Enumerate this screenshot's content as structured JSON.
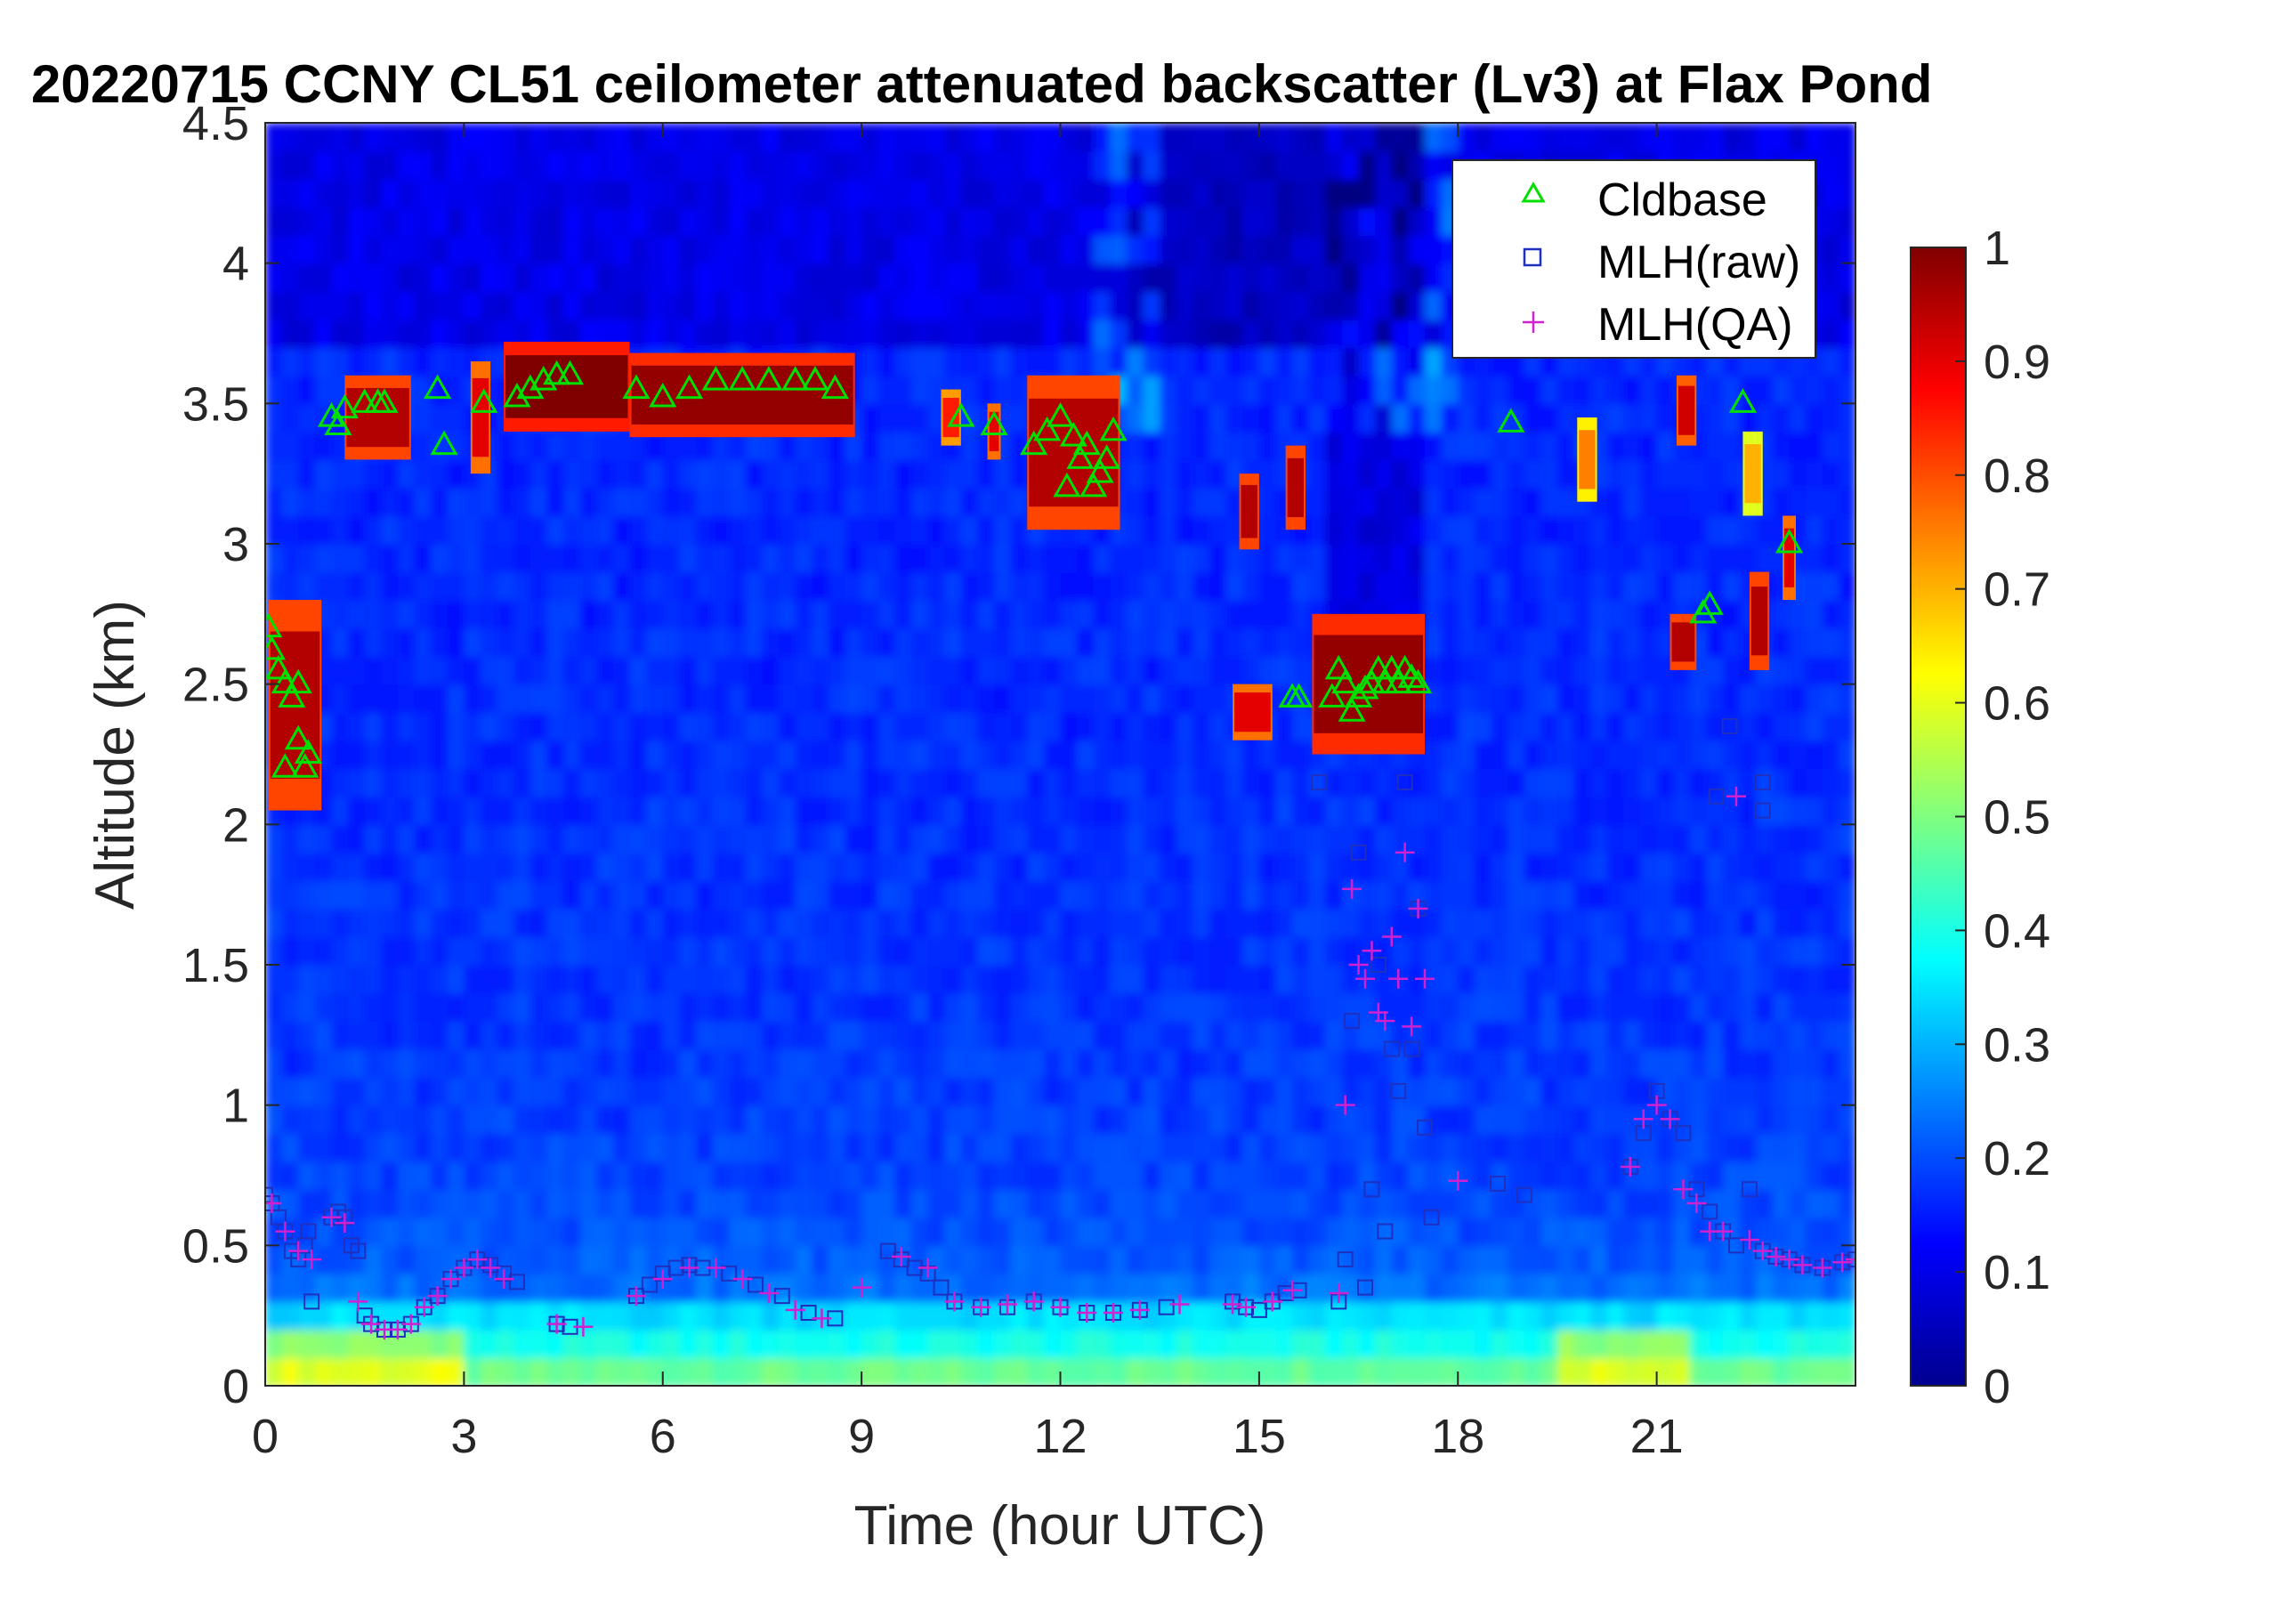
{
  "chart_data": {
    "type": "heatmap",
    "title": "20220715 CCNY CL51 ceilometer attenuated backscatter (Lv3) at Flax Pond",
    "xlabel": "Time (hour UTC)",
    "ylabel": "Altitude (km)",
    "xlim": [
      0,
      24
    ],
    "ylim": [
      0,
      4.5
    ],
    "xticks": [
      "0",
      "3",
      "6",
      "9",
      "12",
      "15",
      "18",
      "21"
    ],
    "xtick_values": [
      0,
      3,
      6,
      9,
      12,
      15,
      18,
      21
    ],
    "yticks": [
      "0",
      "0.5",
      "1",
      "1.5",
      "2",
      "2.5",
      "3",
      "3.5",
      "4",
      "4.5"
    ],
    "ytick_values": [
      0,
      0.5,
      1,
      1.5,
      2,
      2.5,
      3,
      3.5,
      4,
      4.5
    ],
    "colorbar": {
      "colormap": "jet",
      "range": [
        0,
        1
      ],
      "ticks": [
        "0",
        "0.1",
        "0.2",
        "0.3",
        "0.4",
        "0.5",
        "0.6",
        "0.7",
        "0.8",
        "0.9",
        "1"
      ],
      "tick_values": [
        0,
        0.1,
        0.2,
        0.3,
        0.4,
        0.5,
        0.6,
        0.7,
        0.8,
        0.9,
        1
      ]
    },
    "legend": {
      "placement": "top-right",
      "entries": [
        {
          "label": "Cldbase",
          "marker": "triangle",
          "color": "#00e000"
        },
        {
          "label": "MLH(raw)",
          "marker": "square",
          "color": "#1f2fbf"
        },
        {
          "label": "MLH(QA)",
          "marker": "plus",
          "color": "#d020d0"
        }
      ]
    },
    "cloud_layers": [
      {
        "t0": 0.05,
        "t1": 0.85,
        "h0": 2.05,
        "h1": 2.8,
        "intensity": 0.95
      },
      {
        "t0": 1.2,
        "t1": 2.2,
        "h0": 3.3,
        "h1": 3.6,
        "intensity": 0.95
      },
      {
        "t0": 3.1,
        "t1": 3.4,
        "h0": 3.25,
        "h1": 3.65,
        "intensity": 0.9
      },
      {
        "t0": 3.6,
        "t1": 5.5,
        "h0": 3.4,
        "h1": 3.72,
        "intensity": 1.0
      },
      {
        "t0": 5.5,
        "t1": 8.9,
        "h0": 3.38,
        "h1": 3.68,
        "intensity": 0.98
      },
      {
        "t0": 10.2,
        "t1": 10.5,
        "h0": 3.35,
        "h1": 3.55,
        "intensity": 0.85
      },
      {
        "t0": 10.9,
        "t1": 11.1,
        "h0": 3.3,
        "h1": 3.5,
        "intensity": 0.9
      },
      {
        "t0": 11.5,
        "t1": 12.9,
        "h0": 3.05,
        "h1": 3.6,
        "intensity": 0.95
      },
      {
        "t0": 14.7,
        "t1": 15.0,
        "h0": 2.98,
        "h1": 3.25,
        "intensity": 0.95
      },
      {
        "t0": 15.4,
        "t1": 15.7,
        "h0": 3.05,
        "h1": 3.35,
        "intensity": 0.95
      },
      {
        "t0": 14.6,
        "t1": 15.2,
        "h0": 2.3,
        "h1": 2.5,
        "intensity": 0.9
      },
      {
        "t0": 15.8,
        "t1": 17.5,
        "h0": 2.25,
        "h1": 2.75,
        "intensity": 0.98
      },
      {
        "t0": 19.8,
        "t1": 20.1,
        "h0": 3.15,
        "h1": 3.45,
        "intensity": 0.75
      },
      {
        "t0": 21.2,
        "t1": 21.6,
        "h0": 2.55,
        "h1": 2.75,
        "intensity": 0.95
      },
      {
        "t0": 21.3,
        "t1": 21.6,
        "h0": 3.35,
        "h1": 3.6,
        "intensity": 0.92
      },
      {
        "t0": 22.4,
        "t1": 22.7,
        "h0": 2.55,
        "h1": 2.9,
        "intensity": 0.95
      },
      {
        "t0": 22.3,
        "t1": 22.6,
        "h0": 3.1,
        "h1": 3.4,
        "intensity": 0.7
      },
      {
        "t0": 22.9,
        "t1": 23.1,
        "h0": 2.8,
        "h1": 3.1,
        "intensity": 0.9
      }
    ],
    "series": [
      {
        "name": "Cldbase",
        "x": [
          0.05,
          0.1,
          0.2,
          0.3,
          0.4,
          0.5,
          0.6,
          0.65,
          0.3,
          0.5,
          1.0,
          1.1,
          1.2,
          1.5,
          1.7,
          1.8,
          2.6,
          2.7,
          3.3,
          3.8,
          4.0,
          4.2,
          4.4,
          4.6,
          5.6,
          6.0,
          6.4,
          6.8,
          7.2,
          7.6,
          8.0,
          8.3,
          8.6,
          10.5,
          11.0,
          11.6,
          11.8,
          12.0,
          12.1,
          12.2,
          12.3,
          12.4,
          12.5,
          12.6,
          12.7,
          12.8,
          15.5,
          15.6,
          16.1,
          16.2,
          16.3,
          16.4,
          16.5,
          16.6,
          16.7,
          16.8,
          16.9,
          17.0,
          17.1,
          17.2,
          17.3,
          17.4,
          18.8,
          21.7,
          21.8,
          22.3,
          23.0
        ],
        "y": [
          2.7,
          2.62,
          2.55,
          2.5,
          2.45,
          2.3,
          2.2,
          2.25,
          2.2,
          2.5,
          3.45,
          3.42,
          3.48,
          3.5,
          3.5,
          3.5,
          3.55,
          3.35,
          3.5,
          3.52,
          3.55,
          3.58,
          3.6,
          3.6,
          3.55,
          3.52,
          3.55,
          3.58,
          3.58,
          3.58,
          3.58,
          3.58,
          3.55,
          3.45,
          3.42,
          3.35,
          3.4,
          3.45,
          3.2,
          3.38,
          3.3,
          3.35,
          3.2,
          3.25,
          3.3,
          3.4,
          2.45,
          2.45,
          2.45,
          2.55,
          2.5,
          2.4,
          2.45,
          2.48,
          2.5,
          2.55,
          2.5,
          2.55,
          2.5,
          2.55,
          2.52,
          2.5,
          3.43,
          2.75,
          2.78,
          3.5,
          3.0
        ]
      },
      {
        "name": "MLH(raw)",
        "x": [
          0.0,
          0.1,
          0.2,
          0.3,
          0.4,
          0.5,
          0.6,
          0.65,
          0.7,
          1.0,
          1.1,
          1.2,
          1.3,
          1.4,
          1.5,
          1.6,
          1.8,
          2.0,
          2.2,
          2.4,
          2.6,
          2.8,
          3.0,
          3.2,
          3.4,
          3.6,
          3.8,
          4.4,
          4.6,
          5.6,
          5.8,
          6.0,
          6.2,
          6.4,
          6.6,
          7.0,
          7.4,
          7.8,
          8.2,
          8.6,
          9.4,
          9.6,
          9.8,
          10.0,
          10.2,
          10.4,
          10.8,
          11.2,
          11.6,
          12.0,
          12.4,
          12.8,
          13.2,
          13.6,
          14.6,
          14.8,
          15.0,
          15.2,
          15.4,
          15.6,
          15.9,
          16.2,
          16.3,
          16.4,
          16.5,
          16.6,
          16.7,
          16.8,
          16.9,
          17.0,
          17.1,
          17.2,
          17.3,
          17.4,
          17.5,
          17.6,
          18.6,
          19.0,
          20.6,
          20.8,
          21.0,
          21.2,
          21.4,
          21.6,
          21.8,
          22.0,
          22.2,
          22.4,
          22.6,
          22.8,
          23.0,
          23.2,
          23.5,
          23.8,
          24.0,
          22.1,
          21.9,
          22.6,
          22.6
        ],
        "y": [
          0.68,
          0.65,
          0.6,
          0.55,
          0.48,
          0.45,
          0.5,
          0.55,
          0.3,
          0.6,
          0.62,
          0.6,
          0.5,
          0.48,
          0.25,
          0.22,
          0.2,
          0.2,
          0.22,
          0.28,
          0.32,
          0.38,
          0.42,
          0.45,
          0.43,
          0.4,
          0.37,
          0.22,
          0.21,
          0.32,
          0.36,
          0.4,
          0.42,
          0.43,
          0.42,
          0.4,
          0.36,
          0.32,
          0.26,
          0.24,
          0.48,
          0.45,
          0.42,
          0.4,
          0.35,
          0.3,
          0.28,
          0.28,
          0.3,
          0.28,
          0.26,
          0.26,
          0.27,
          0.28,
          0.3,
          0.28,
          0.27,
          0.3,
          0.33,
          0.34,
          2.15,
          0.3,
          0.45,
          1.3,
          1.9,
          0.35,
          0.7,
          1.5,
          0.55,
          1.2,
          1.05,
          2.15,
          1.2,
          1.7,
          0.92,
          0.6,
          0.72,
          0.68,
          0.78,
          0.9,
          1.05,
          0.95,
          0.9,
          0.7,
          0.62,
          0.55,
          0.5,
          0.7,
          0.48,
          0.46,
          0.45,
          0.43,
          0.42,
          0.44,
          0.45,
          2.35,
          2.1,
          2.15,
          2.05
        ],
        "note": ""
      },
      {
        "name": "MLH(QA)",
        "x": [
          0.1,
          0.3,
          0.5,
          0.7,
          1.0,
          1.2,
          1.4,
          1.6,
          1.8,
          2.0,
          2.2,
          2.4,
          2.6,
          2.8,
          3.0,
          3.2,
          3.4,
          3.6,
          4.4,
          4.8,
          5.6,
          6.0,
          6.4,
          6.8,
          7.2,
          7.6,
          8.0,
          8.4,
          9.0,
          9.6,
          10.0,
          10.4,
          10.8,
          11.2,
          11.6,
          12.0,
          12.4,
          12.8,
          13.2,
          13.8,
          14.6,
          14.8,
          15.2,
          15.5,
          16.2,
          16.3,
          16.4,
          16.5,
          16.6,
          16.7,
          16.8,
          16.9,
          17.0,
          17.1,
          17.2,
          17.3,
          17.4,
          17.5,
          18.0,
          20.6,
          20.8,
          21.0,
          21.2,
          21.4,
          21.6,
          21.8,
          22.0,
          22.2,
          22.4,
          22.6,
          22.8,
          23.0,
          23.2,
          23.5,
          23.8,
          24.0
        ],
        "y": [
          0.65,
          0.55,
          0.48,
          0.45,
          0.6,
          0.58,
          0.3,
          0.22,
          0.2,
          0.2,
          0.22,
          0.28,
          0.32,
          0.38,
          0.42,
          0.45,
          0.42,
          0.38,
          0.22,
          0.21,
          0.32,
          0.38,
          0.42,
          0.42,
          0.38,
          0.33,
          0.27,
          0.24,
          0.35,
          0.46,
          0.42,
          0.3,
          0.28,
          0.29,
          0.3,
          0.28,
          0.26,
          0.26,
          0.27,
          0.29,
          0.29,
          0.28,
          0.3,
          0.34,
          0.33,
          1.0,
          1.77,
          1.5,
          1.45,
          1.55,
          1.33,
          1.3,
          1.6,
          1.45,
          1.9,
          1.28,
          1.7,
          1.45,
          0.73,
          0.78,
          0.95,
          1.0,
          0.95,
          0.7,
          0.65,
          0.55,
          0.55,
          2.1,
          0.52,
          0.48,
          0.46,
          0.45,
          0.43,
          0.42,
          0.44,
          0.45
        ]
      }
    ]
  }
}
